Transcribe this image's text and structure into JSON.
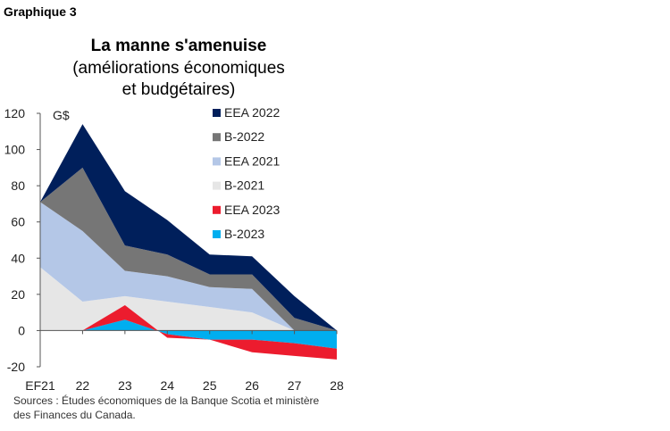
{
  "figure_label": "Graphique 3",
  "title": "La manne s'amenuise",
  "subtitle_lines": [
    "(améliorations économiques",
    "et budgétaires)"
  ],
  "source_lines": [
    "Sources : Études économiques de la Banque Scotia et ministère",
    "des Finances du Canada."
  ],
  "chart_data": {
    "type": "area",
    "stacked": true,
    "title": "La manne s'amenuise",
    "ylabel": "G$",
    "ylim": [
      -20,
      120
    ],
    "yticks": [
      -20,
      0,
      20,
      40,
      60,
      80,
      100,
      120
    ],
    "categories": [
      "EF21",
      "22",
      "23",
      "24",
      "25",
      "26",
      "27",
      "28"
    ],
    "legend_position": "top-right",
    "grid": false,
    "series": [
      {
        "name": "B-2021",
        "color": "#e6e6e6",
        "values": [
          35,
          16,
          19,
          16,
          13,
          10,
          0,
          0
        ]
      },
      {
        "name": "EEA 2021",
        "color": "#b4c7e7",
        "values": [
          36,
          39,
          14,
          14,
          11,
          13,
          0,
          0
        ]
      },
      {
        "name": "B-2022",
        "color": "#767676",
        "values": [
          0,
          35,
          14,
          12,
          7,
          8,
          7,
          0
        ]
      },
      {
        "name": "EEA 2022",
        "color": "#001f5b",
        "values": [
          0,
          24,
          30,
          19,
          11,
          10,
          12,
          0
        ]
      },
      {
        "name": "B-2023",
        "color": "#00aeef",
        "values": [
          null,
          0,
          6,
          -2,
          -5,
          -5,
          -7,
          -10
        ]
      },
      {
        "name": "EEA 2023",
        "color": "#ec1c2e",
        "values": [
          null,
          0,
          8,
          -2,
          0,
          -7,
          -7,
          -6
        ]
      }
    ],
    "legend_order": [
      "EEA 2022",
      "B-2022",
      "EEA 2021",
      "B-2021",
      "EEA 2023",
      "B-2023"
    ]
  }
}
